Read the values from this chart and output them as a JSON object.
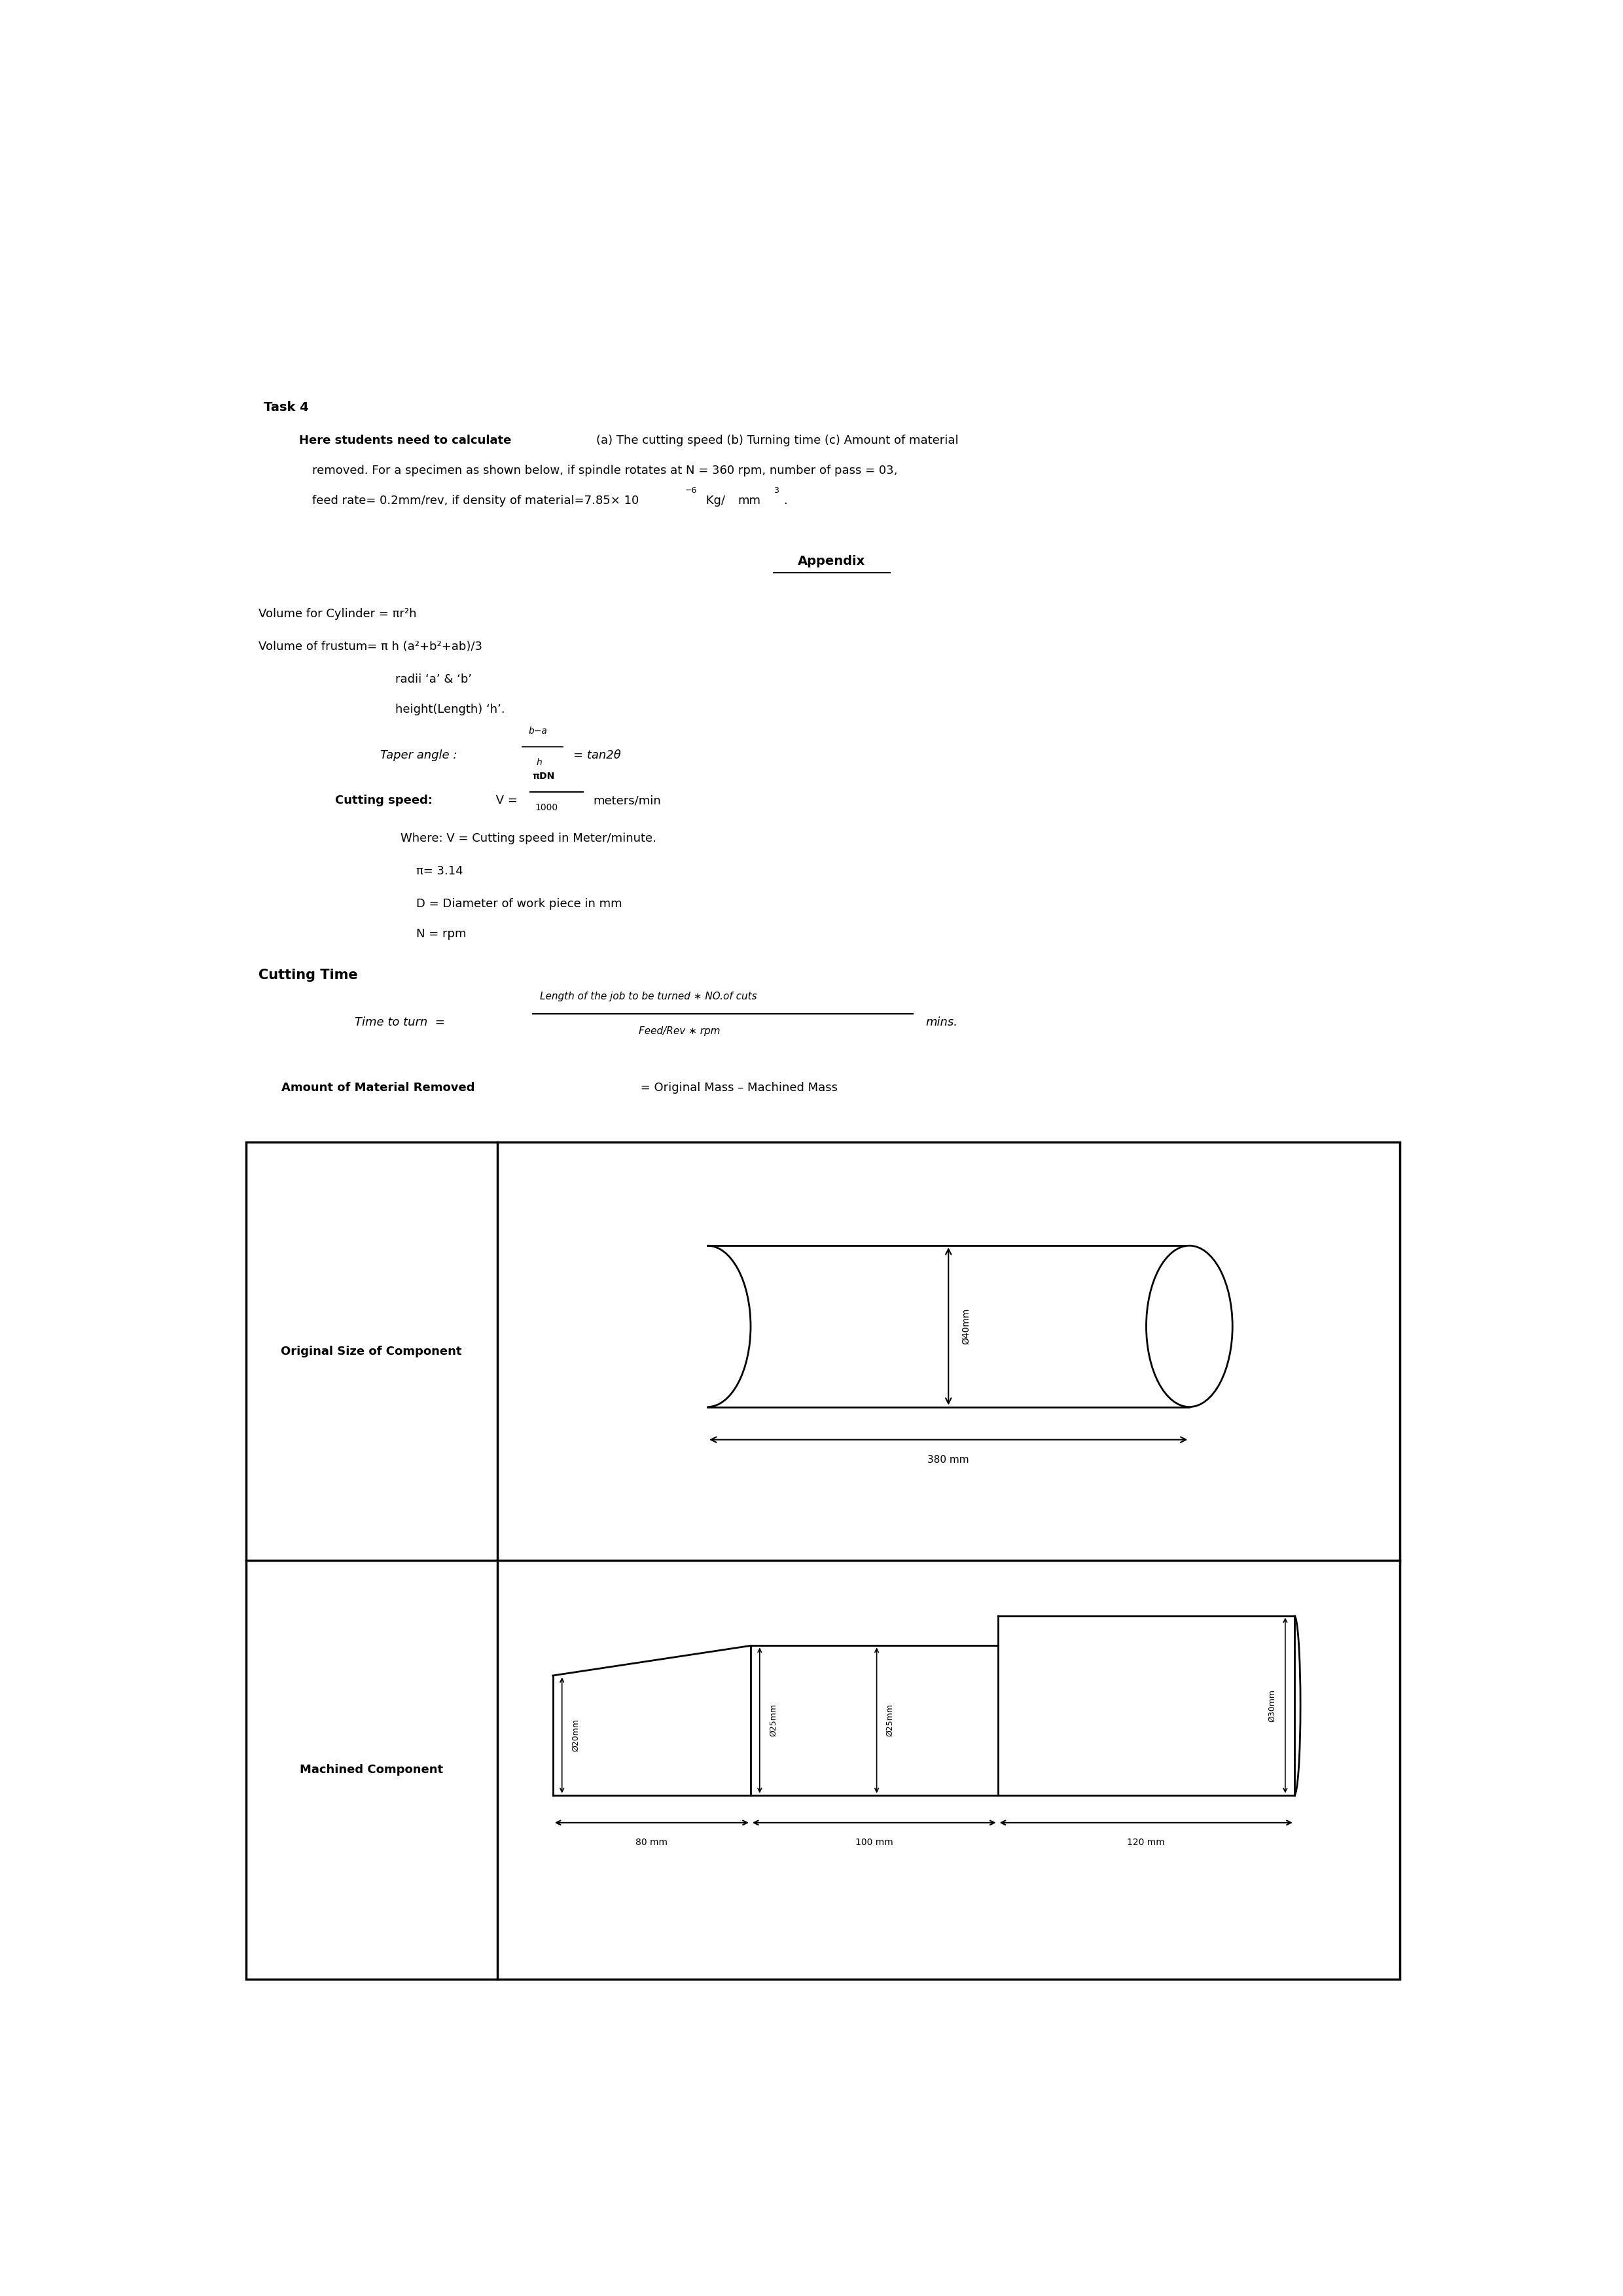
{
  "bg_color": "#ffffff",
  "text_color": "#000000",
  "page_width": 24.8,
  "page_height": 35.08,
  "title": "Task 4",
  "appendix_title": "Appendix",
  "vol_cyl": "Volume for Cylinder = πr²h",
  "vol_frus": "Volume of frustum= π h (a²+b²+ab)/3",
  "radii": "radii ‘a’ & ‘b’",
  "height_label": "height(Length) ‘h’.",
  "pi_val": "π= 3.14",
  "D_label": "D = Diameter of work piece in mm",
  "N_label": "N = rpm",
  "cutting_time_header": "Cutting Time",
  "original_label": "Original Size of Component",
  "machined_label": "Machined Component",
  "orig_length": "380 mm",
  "dim_80": "80 mm",
  "dim_100": "100 mm",
  "dim_120": "120 mm",
  "phi_20": "Ø20mm",
  "phi_25a": "Ø25mm",
  "phi_25b": "Ø25mm",
  "phi_30": "Ø30mm"
}
